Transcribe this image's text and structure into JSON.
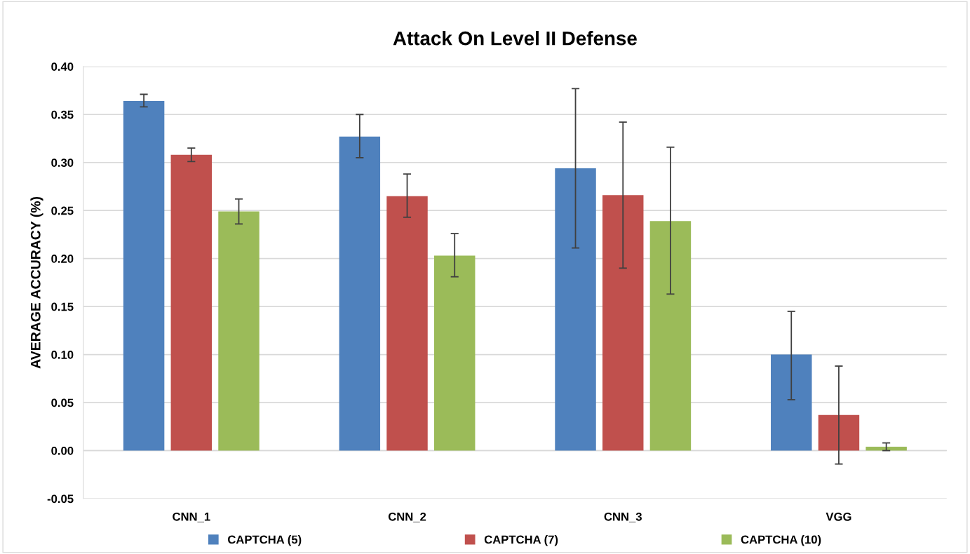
{
  "chart_data": {
    "type": "bar",
    "title": "Attack On Level II Defense",
    "ylabel": "AVERAGE ACCURACY (%)",
    "categories": [
      "CNN_1",
      "CNN_2",
      "CNN_3",
      "VGG"
    ],
    "series": [
      {
        "name": "CAPTCHA (5)",
        "color": "#4f81bd",
        "values": [
          0.364,
          0.327,
          0.294,
          0.1
        ],
        "errors": [
          [
            0.358,
            0.371
          ],
          [
            0.305,
            0.35
          ],
          [
            0.211,
            0.377
          ],
          [
            0.053,
            0.145
          ]
        ]
      },
      {
        "name": "CAPTCHA (7)",
        "color": "#c0504d",
        "values": [
          0.308,
          0.265,
          0.266,
          0.037
        ],
        "errors": [
          [
            0.301,
            0.315
          ],
          [
            0.243,
            0.288
          ],
          [
            0.19,
            0.342
          ],
          [
            -0.014,
            0.088
          ]
        ]
      },
      {
        "name": "CAPTCHA (10)",
        "color": "#9bbb59",
        "values": [
          0.249,
          0.203,
          0.239,
          0.004
        ],
        "errors": [
          [
            0.236,
            0.262
          ],
          [
            0.181,
            0.226
          ],
          [
            0.163,
            0.316
          ],
          [
            0.0,
            0.008
          ]
        ]
      }
    ],
    "ylim": [
      -0.05,
      0.4
    ],
    "yticks": [
      {
        "value": -0.05,
        "label": "-0.05"
      },
      {
        "value": 0.0,
        "label": "0.00"
      },
      {
        "value": 0.05,
        "label": "0.05"
      },
      {
        "value": 0.1,
        "label": "0.10"
      },
      {
        "value": 0.15,
        "label": "0.15"
      },
      {
        "value": 0.2,
        "label": "0.20"
      },
      {
        "value": 0.25,
        "label": "0.25"
      },
      {
        "value": 0.3,
        "label": "0.30"
      },
      {
        "value": 0.35,
        "label": "0.35"
      },
      {
        "value": 0.4,
        "label": "0.40"
      }
    ],
    "grid": "y",
    "legend": "bottom"
  }
}
